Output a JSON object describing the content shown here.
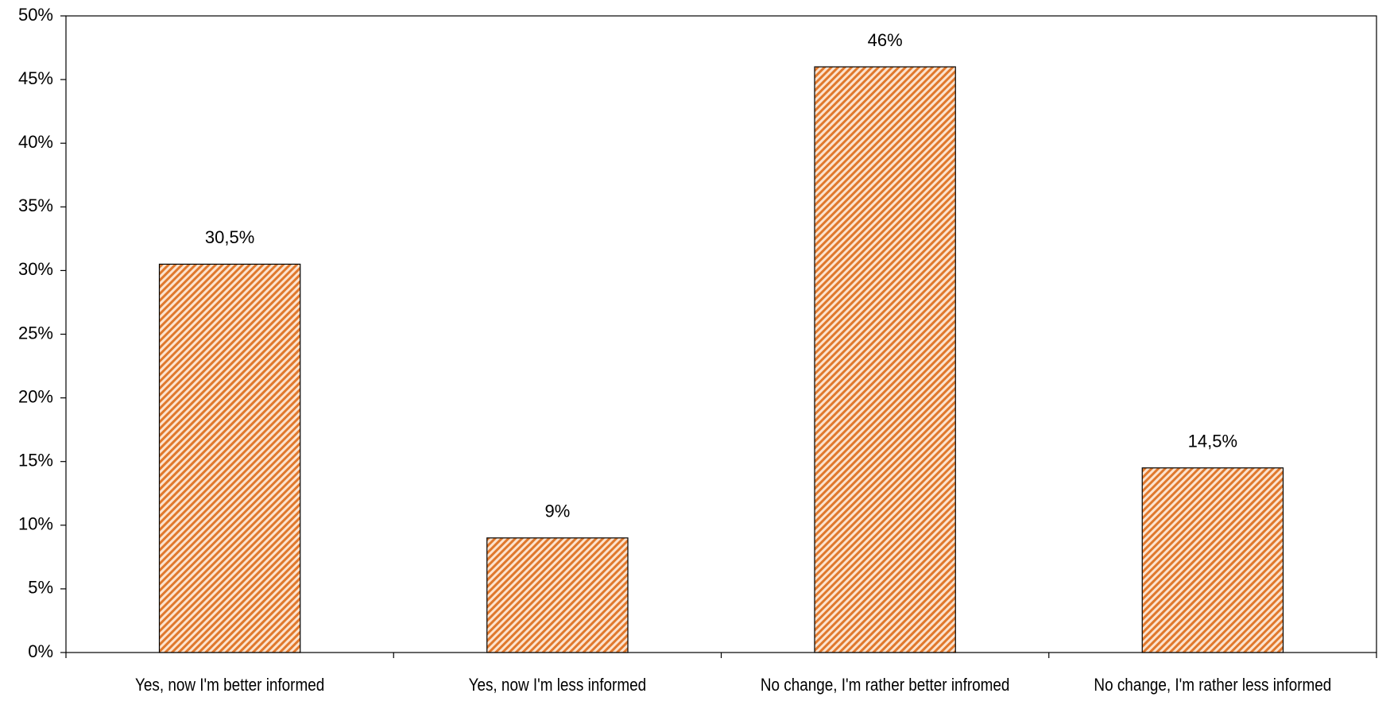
{
  "chart_data": {
    "type": "bar",
    "categories": [
      "Yes, now I'm better informed",
      "Yes, now I'm less informed",
      "No change, I'm rather better infromed",
      "No change, I'm rather less informed"
    ],
    "values": [
      30.5,
      9,
      46,
      14.5
    ],
    "value_labels": [
      "30,5%",
      "9%",
      "46%",
      "14,5%"
    ],
    "color": "#e0782c",
    "ylim": [
      0,
      50
    ],
    "yticks": [
      {
        "value": 0,
        "label": "0%"
      },
      {
        "value": 5,
        "label": "5%"
      },
      {
        "value": 10,
        "label": "10%"
      },
      {
        "value": 15,
        "label": "15%"
      },
      {
        "value": 20,
        "label": "20%"
      },
      {
        "value": 25,
        "label": "25%"
      },
      {
        "value": 30,
        "label": "30%"
      },
      {
        "value": 35,
        "label": "35%"
      },
      {
        "value": 40,
        "label": "40%"
      },
      {
        "value": 45,
        "label": "45%"
      },
      {
        "value": 50,
        "label": "50%"
      }
    ],
    "grid": false
  }
}
